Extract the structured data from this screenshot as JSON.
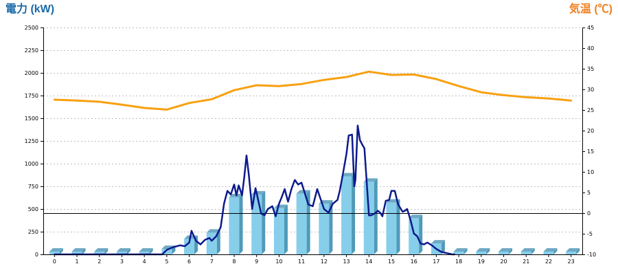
{
  "left_axis_title": "電力 (kW)",
  "right_axis_title": "気温 (℃)",
  "chart_data": {
    "type": "bar+line",
    "grid": true,
    "categories": [
      "0",
      "1",
      "2",
      "3",
      "4",
      "5",
      "6",
      "7",
      "8",
      "9",
      "10",
      "11",
      "12",
      "13",
      "14",
      "15",
      "16",
      "17",
      "18",
      "19",
      "20",
      "21",
      "22",
      "23"
    ],
    "left_axis": {
      "label": "電力 (kW)",
      "range": [
        0,
        2500
      ],
      "ticks": [
        "0",
        "250",
        "500",
        "750",
        "1000",
        "1250",
        "1500",
        "1750",
        "2000",
        "2250",
        "2500"
      ]
    },
    "right_axis": {
      "label": "気温 (℃)",
      "range": [
        -10,
        45
      ],
      "ticks": [
        "-10",
        "-5",
        "0",
        "5",
        "10",
        "15",
        "20",
        "25",
        "30",
        "35",
        "40",
        "45"
      ]
    },
    "series": [
      {
        "kind": "bar",
        "axis": "left",
        "color": "#87ceeb",
        "values": [
          30,
          30,
          30,
          30,
          30,
          60,
          170,
          240,
          630,
          660,
          510,
          670,
          560,
          860,
          800,
          570,
          400,
          120,
          30,
          30,
          30,
          30,
          30,
          30
        ]
      },
      {
        "kind": "line",
        "axis": "left",
        "color": "#0d1a8c",
        "x": [
          0,
          1,
          2,
          3,
          4,
          4.8,
          5,
          5.3,
          5.6,
          5.8,
          6.0,
          6.1,
          6.3,
          6.5,
          6.7,
          6.9,
          7.0,
          7.2,
          7.4,
          7.55,
          7.7,
          7.85,
          8.0,
          8.1,
          8.2,
          8.35,
          8.45,
          8.55,
          8.65,
          8.8,
          8.95,
          9.05,
          9.2,
          9.35,
          9.5,
          9.7,
          9.85,
          10.0,
          10.1,
          10.25,
          10.4,
          10.55,
          10.7,
          10.85,
          11.0,
          11.15,
          11.3,
          11.5,
          11.7,
          11.85,
          12.0,
          12.2,
          12.4,
          12.6,
          12.7,
          12.85,
          13.0,
          13.1,
          13.25,
          13.35,
          13.4,
          13.5,
          13.6,
          13.7,
          13.8,
          13.9,
          14.0,
          14.1,
          14.25,
          14.4,
          14.5,
          14.6,
          14.75,
          14.9,
          15.0,
          15.15,
          15.3,
          15.5,
          15.6,
          15.7,
          15.85,
          16.0,
          16.15,
          16.3,
          16.45,
          16.6,
          16.8,
          17.0,
          17.2,
          17.35,
          17.55,
          17.7,
          17.8
        ],
        "y": [
          0,
          0,
          0,
          0,
          0,
          0,
          50,
          80,
          100,
          90,
          130,
          260,
          150,
          110,
          160,
          180,
          150,
          200,
          300,
          560,
          700,
          660,
          770,
          650,
          760,
          650,
          850,
          1090,
          880,
          500,
          730,
          620,
          450,
          430,
          500,
          530,
          420,
          560,
          620,
          720,
          580,
          720,
          820,
          770,
          790,
          670,
          550,
          530,
          720,
          610,
          500,
          460,
          560,
          600,
          700,
          900,
          1110,
          1310,
          1320,
          750,
          820,
          1420,
          1260,
          1210,
          1170,
          800,
          430,
          430,
          450,
          480,
          460,
          420,
          590,
          600,
          700,
          700,
          550,
          470,
          480,
          500,
          380,
          230,
          200,
          120,
          110,
          130,
          100,
          60,
          30,
          20,
          10,
          0,
          0
        ]
      },
      {
        "kind": "line",
        "axis": "right",
        "color": "#f8a010",
        "x": [
          0,
          1,
          2,
          3,
          4,
          5,
          6,
          7,
          8,
          9,
          10,
          11,
          12,
          13,
          14,
          15,
          16,
          17,
          18,
          19,
          20,
          21,
          22,
          23
        ],
        "y": [
          27.5,
          27.3,
          27.0,
          26.3,
          25.5,
          25.1,
          26.7,
          27.6,
          29.8,
          31.0,
          30.8,
          31.3,
          32.3,
          33.0,
          34.3,
          33.5,
          33.6,
          32.5,
          30.8,
          29.3,
          28.6,
          28.1,
          27.8,
          27.3
        ]
      }
    ]
  }
}
